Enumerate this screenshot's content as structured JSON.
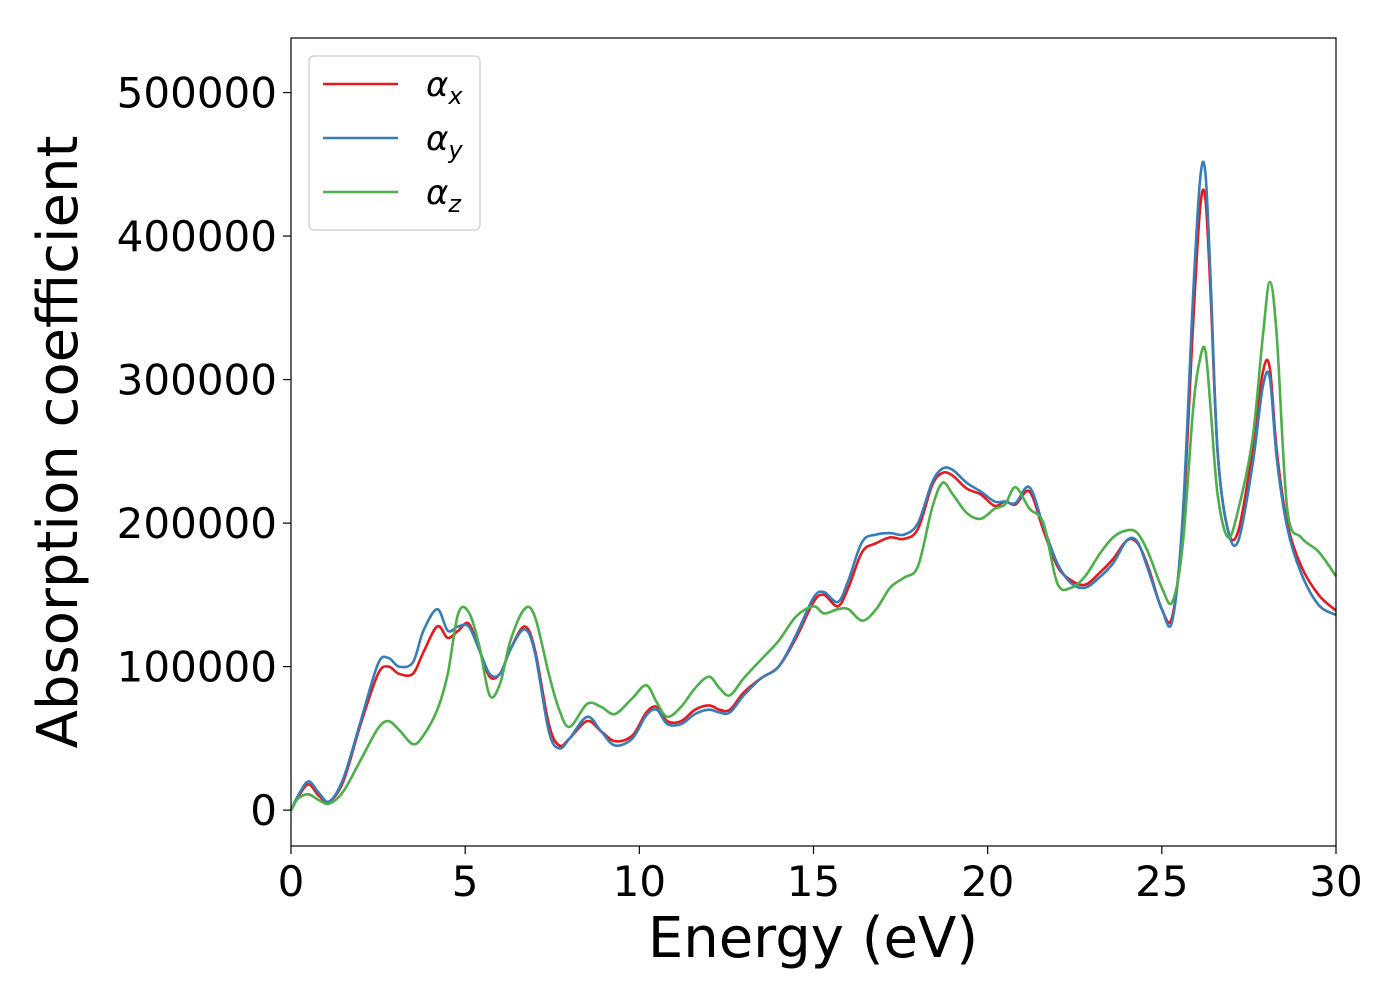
{
  "chart_data": {
    "type": "line",
    "title": "",
    "xlabel": "Energy (eV)",
    "ylabel": "Absorption coefficient",
    "xlim": [
      0,
      30
    ],
    "ylim": [
      -25000,
      538000
    ],
    "xticks": [
      0,
      5,
      10,
      15,
      20,
      25,
      30
    ],
    "xtick_labels": [
      "0",
      "5",
      "10",
      "15",
      "20",
      "25",
      "30"
    ],
    "yticks": [
      0,
      100000,
      200000,
      300000,
      400000,
      500000
    ],
    "ytick_labels": [
      "0",
      "100000",
      "200000",
      "300000",
      "400000",
      "500000"
    ],
    "grid": false,
    "legend_position": "top-left",
    "x": [
      0,
      0.2,
      0.5,
      0.8,
      1.1,
      1.5,
      2.0,
      2.5,
      2.8,
      3.1,
      3.5,
      3.8,
      4.2,
      4.5,
      4.8,
      5.1,
      5.4,
      5.7,
      6.0,
      6.3,
      6.7,
      7.0,
      7.4,
      7.7,
      8.0,
      8.5,
      8.9,
      9.3,
      9.8,
      10.2,
      10.5,
      10.8,
      11.2,
      11.6,
      12.0,
      12.3,
      12.6,
      13.0,
      13.5,
      14.0,
      14.5,
      15.0,
      15.3,
      15.7,
      16.0,
      16.4,
      16.8,
      17.2,
      17.6,
      18.0,
      18.4,
      18.7,
      19.0,
      19.4,
      19.8,
      20.2,
      20.5,
      20.8,
      21.2,
      21.6,
      22.0,
      22.4,
      22.8,
      23.2,
      23.6,
      24.0,
      24.3,
      24.6,
      25.0,
      25.3,
      25.6,
      25.9,
      26.1,
      26.25,
      26.4,
      26.6,
      26.9,
      27.2,
      27.6,
      27.9,
      28.1,
      28.3,
      28.6,
      29.0,
      29.5,
      30.0
    ],
    "series": [
      {
        "name": "α_x",
        "color": "#e41a1c",
        "values": [
          0,
          9000,
          18000,
          10000,
          6000,
          20000,
          60000,
          95000,
          100000,
          95000,
          95000,
          110000,
          128000,
          120000,
          125000,
          130000,
          112000,
          93000,
          95000,
          112000,
          128000,
          112000,
          60000,
          45000,
          50000,
          62000,
          55000,
          48000,
          52000,
          68000,
          72000,
          62000,
          62000,
          70000,
          73000,
          70000,
          70000,
          82000,
          92000,
          100000,
          120000,
          145000,
          150000,
          142000,
          155000,
          180000,
          186000,
          190000,
          189000,
          196000,
          226000,
          235000,
          233000,
          224000,
          220000,
          212000,
          215000,
          213000,
          222000,
          195000,
          170000,
          160000,
          157000,
          165000,
          175000,
          188000,
          186000,
          170000,
          140000,
          135000,
          200000,
          340000,
          420000,
          426000,
          360000,
          250000,
          195000,
          195000,
          250000,
          305000,
          308000,
          250000,
          200000,
          170000,
          150000,
          139000
        ]
      },
      {
        "name": "α_y",
        "color": "#377eb8",
        "values": [
          0,
          10000,
          20000,
          12000,
          6000,
          22000,
          62000,
          102000,
          106000,
          100000,
          103000,
          125000,
          140000,
          125000,
          128000,
          128000,
          112000,
          95000,
          95000,
          112000,
          126000,
          110000,
          55000,
          43000,
          50000,
          65000,
          55000,
          45000,
          50000,
          66000,
          70000,
          60000,
          60000,
          67000,
          70000,
          68000,
          68000,
          80000,
          92000,
          100000,
          122000,
          148000,
          152000,
          145000,
          160000,
          187000,
          192000,
          193000,
          192000,
          200000,
          228000,
          238000,
          237000,
          228000,
          222000,
          215000,
          215000,
          214000,
          225000,
          198000,
          172000,
          158000,
          155000,
          162000,
          172000,
          188000,
          187000,
          168000,
          140000,
          132000,
          205000,
          360000,
          440000,
          444000,
          370000,
          250000,
          195000,
          188000,
          240000,
          295000,
          301000,
          245000,
          197000,
          165000,
          143000,
          136000
        ]
      },
      {
        "name": "α_z",
        "color": "#4daf4a",
        "values": [
          0,
          8000,
          11000,
          7000,
          4500,
          13000,
          35000,
          57000,
          62000,
          56000,
          46000,
          52000,
          70000,
          95000,
          137000,
          138000,
          115000,
          80000,
          88000,
          118000,
          140000,
          135000,
          95000,
          70000,
          58000,
          74000,
          72000,
          67000,
          78000,
          87000,
          75000,
          65000,
          72000,
          85000,
          93000,
          85000,
          80000,
          92000,
          105000,
          118000,
          135000,
          142000,
          137000,
          140000,
          140000,
          132000,
          140000,
          155000,
          162000,
          170000,
          210000,
          228000,
          220000,
          207000,
          203000,
          210000,
          213000,
          225000,
          210000,
          200000,
          158000,
          155000,
          163000,
          178000,
          190000,
          195000,
          193000,
          180000,
          155000,
          145000,
          185000,
          280000,
          315000,
          320000,
          280000,
          220000,
          190000,
          210000,
          258000,
          330000,
          368000,
          330000,
          210000,
          190000,
          180000,
          163000
        ]
      }
    ]
  }
}
